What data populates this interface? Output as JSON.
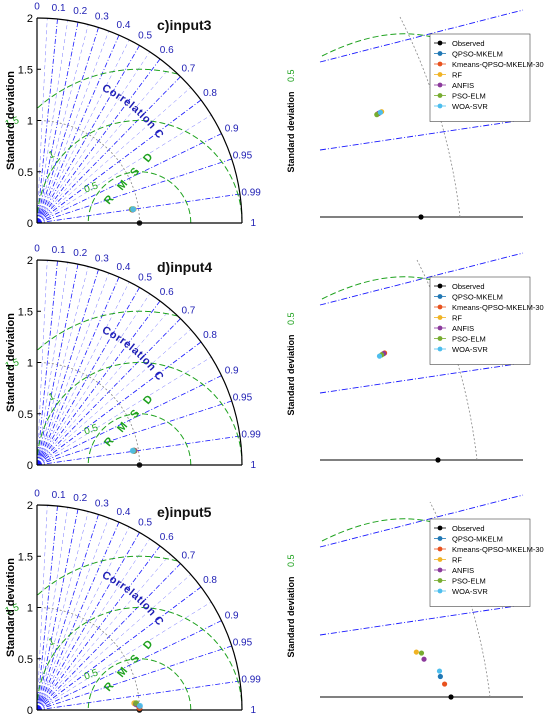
{
  "colors": {
    "axis": "#000000",
    "corr": "#1a1aff",
    "corr_text": "#1e1eb4",
    "rmsd": "#1fa21f",
    "std_arc": "#888888",
    "legend_border": "#444444"
  },
  "chart_data": [
    {
      "type": "scatter",
      "subtype": "taylor-diagram",
      "panel_label": "c)input3",
      "ylabel": "Standard deviation",
      "corr_label": "Correlation Coefficient",
      "rmsd_label": "R M S D",
      "std_ticks": [
        "0",
        "0.5",
        "1",
        "1.5",
        "2"
      ],
      "std_range": [
        0,
        2
      ],
      "corr_ticks": [
        "0",
        "0.1",
        "0.2",
        "0.3",
        "0.4",
        "0.5",
        "0.6",
        "0.7",
        "0.8",
        "0.9",
        "0.95",
        "0.99",
        "1"
      ],
      "rmsd_tick_labels": [
        "0.5",
        "1",
        "1.5"
      ],
      "zoom_rmsd_label": "0.5",
      "observed_std": 1.0,
      "legend": [
        "Observed",
        "QPSO-MKELM",
        "Kmeans-QPSO-MKELM-30",
        "RF",
        "ANFIS",
        "PSO-ELM",
        "WOA-SVR"
      ],
      "series": [
        {
          "name": "Observed",
          "color": "#000000",
          "corr": 1.0,
          "std": 1.0
        },
        {
          "name": "QPSO-MKELM",
          "color": "#1f77b4",
          "corr": 0.99,
          "std": 0.944
        },
        {
          "name": "Kmeans-QPSO-MKELM-30",
          "color": "#e8521e",
          "corr": 0.9902,
          "std": 0.938
        },
        {
          "name": "RF",
          "color": "#f0b323",
          "corr": 0.9898,
          "std": 0.952
        },
        {
          "name": "ANFIS",
          "color": "#8b3a9c",
          "corr": 0.9901,
          "std": 0.942
        },
        {
          "name": "PSO-ELM",
          "color": "#77ac30",
          "corr": 0.9897,
          "std": 0.936
        },
        {
          "name": "WOA-SVR",
          "color": "#4dbeee",
          "corr": 0.99,
          "std": 0.948
        }
      ]
    },
    {
      "type": "scatter",
      "subtype": "taylor-diagram",
      "panel_label": "d)input4",
      "ylabel": "Standard deviation",
      "corr_label": "Correlation Coefficient",
      "rmsd_label": "R M S D",
      "std_ticks": [
        "0",
        "0.5",
        "1",
        "1.5",
        "2"
      ],
      "std_range": [
        0,
        2
      ],
      "corr_ticks": [
        "0",
        "0.1",
        "0.2",
        "0.3",
        "0.4",
        "0.5",
        "0.6",
        "0.7",
        "0.8",
        "0.9",
        "0.95",
        "0.99",
        "1"
      ],
      "rmsd_tick_labels": [
        "0.5",
        "1",
        "1.5"
      ],
      "zoom_rmsd_label": "0.5",
      "observed_std": 1.0,
      "legend": [
        "Observed",
        "QPSO-MKELM",
        "Kmeans-QPSO-MKELM-30",
        "RF",
        "ANFIS",
        "PSO-ELM",
        "WOA-SVR"
      ],
      "series": [
        {
          "name": "Observed",
          "color": "#000000",
          "corr": 1.0,
          "std": 1.0
        },
        {
          "name": "QPSO-MKELM",
          "color": "#1f77b4",
          "corr": 0.9893,
          "std": 0.957
        },
        {
          "name": "Kmeans-QPSO-MKELM-30",
          "color": "#e8521e",
          "corr": 0.9895,
          "std": 0.962
        },
        {
          "name": "RF",
          "color": "#f0b323",
          "corr": 0.9897,
          "std": 0.955
        },
        {
          "name": "ANFIS",
          "color": "#8b3a9c",
          "corr": 0.9894,
          "std": 0.959
        },
        {
          "name": "PSO-ELM",
          "color": "#77ac30",
          "corr": 0.9893,
          "std": 0.952
        },
        {
          "name": "WOA-SVR",
          "color": "#4dbeee",
          "corr": 0.9892,
          "std": 0.945
        }
      ]
    },
    {
      "type": "scatter",
      "subtype": "taylor-diagram",
      "panel_label": "e)input5",
      "ylabel": "Standard deviation",
      "corr_label": "Correlation Coefficient",
      "rmsd_label": "R M S D",
      "std_ticks": [
        "0",
        "0.5",
        "1",
        "1.5",
        "2"
      ],
      "std_range": [
        0,
        2
      ],
      "corr_ticks": [
        "0",
        "0.1",
        "0.2",
        "0.3",
        "0.4",
        "0.5",
        "0.6",
        "0.7",
        "0.8",
        "0.9",
        "0.95",
        "0.99",
        "1"
      ],
      "rmsd_tick_labels": [
        "0.5",
        "1",
        "1.5"
      ],
      "zoom_rmsd_label": "0.5",
      "observed_std": 1.0,
      "legend": [
        "Observed",
        "QPSO-MKELM",
        "Kmeans-QPSO-MKELM-30",
        "RF",
        "ANFIS",
        "PSO-ELM",
        "WOA-SVR"
      ],
      "series": [
        {
          "name": "Observed",
          "color": "#000000",
          "corr": 1.0,
          "std": 1.0
        },
        {
          "name": "QPSO-MKELM",
          "color": "#1f77b4",
          "corr": 0.9995,
          "std": 0.998
        },
        {
          "name": "Kmeans-QPSO-MKELM-30",
          "color": "#e8521e",
          "corr": 0.9998,
          "std": 1.0
        },
        {
          "name": "RF",
          "color": "#f0b323",
          "corr": 0.9976,
          "std": 0.952
        },
        {
          "name": "ANFIS",
          "color": "#8b3a9c",
          "corr": 0.9983,
          "std": 0.968
        },
        {
          "name": "PSO-ELM",
          "color": "#77ac30",
          "corr": 0.9977,
          "std": 0.97
        },
        {
          "name": "WOA-SVR",
          "color": "#4dbeee",
          "corr": 0.9992,
          "std": 1.005
        }
      ]
    }
  ]
}
